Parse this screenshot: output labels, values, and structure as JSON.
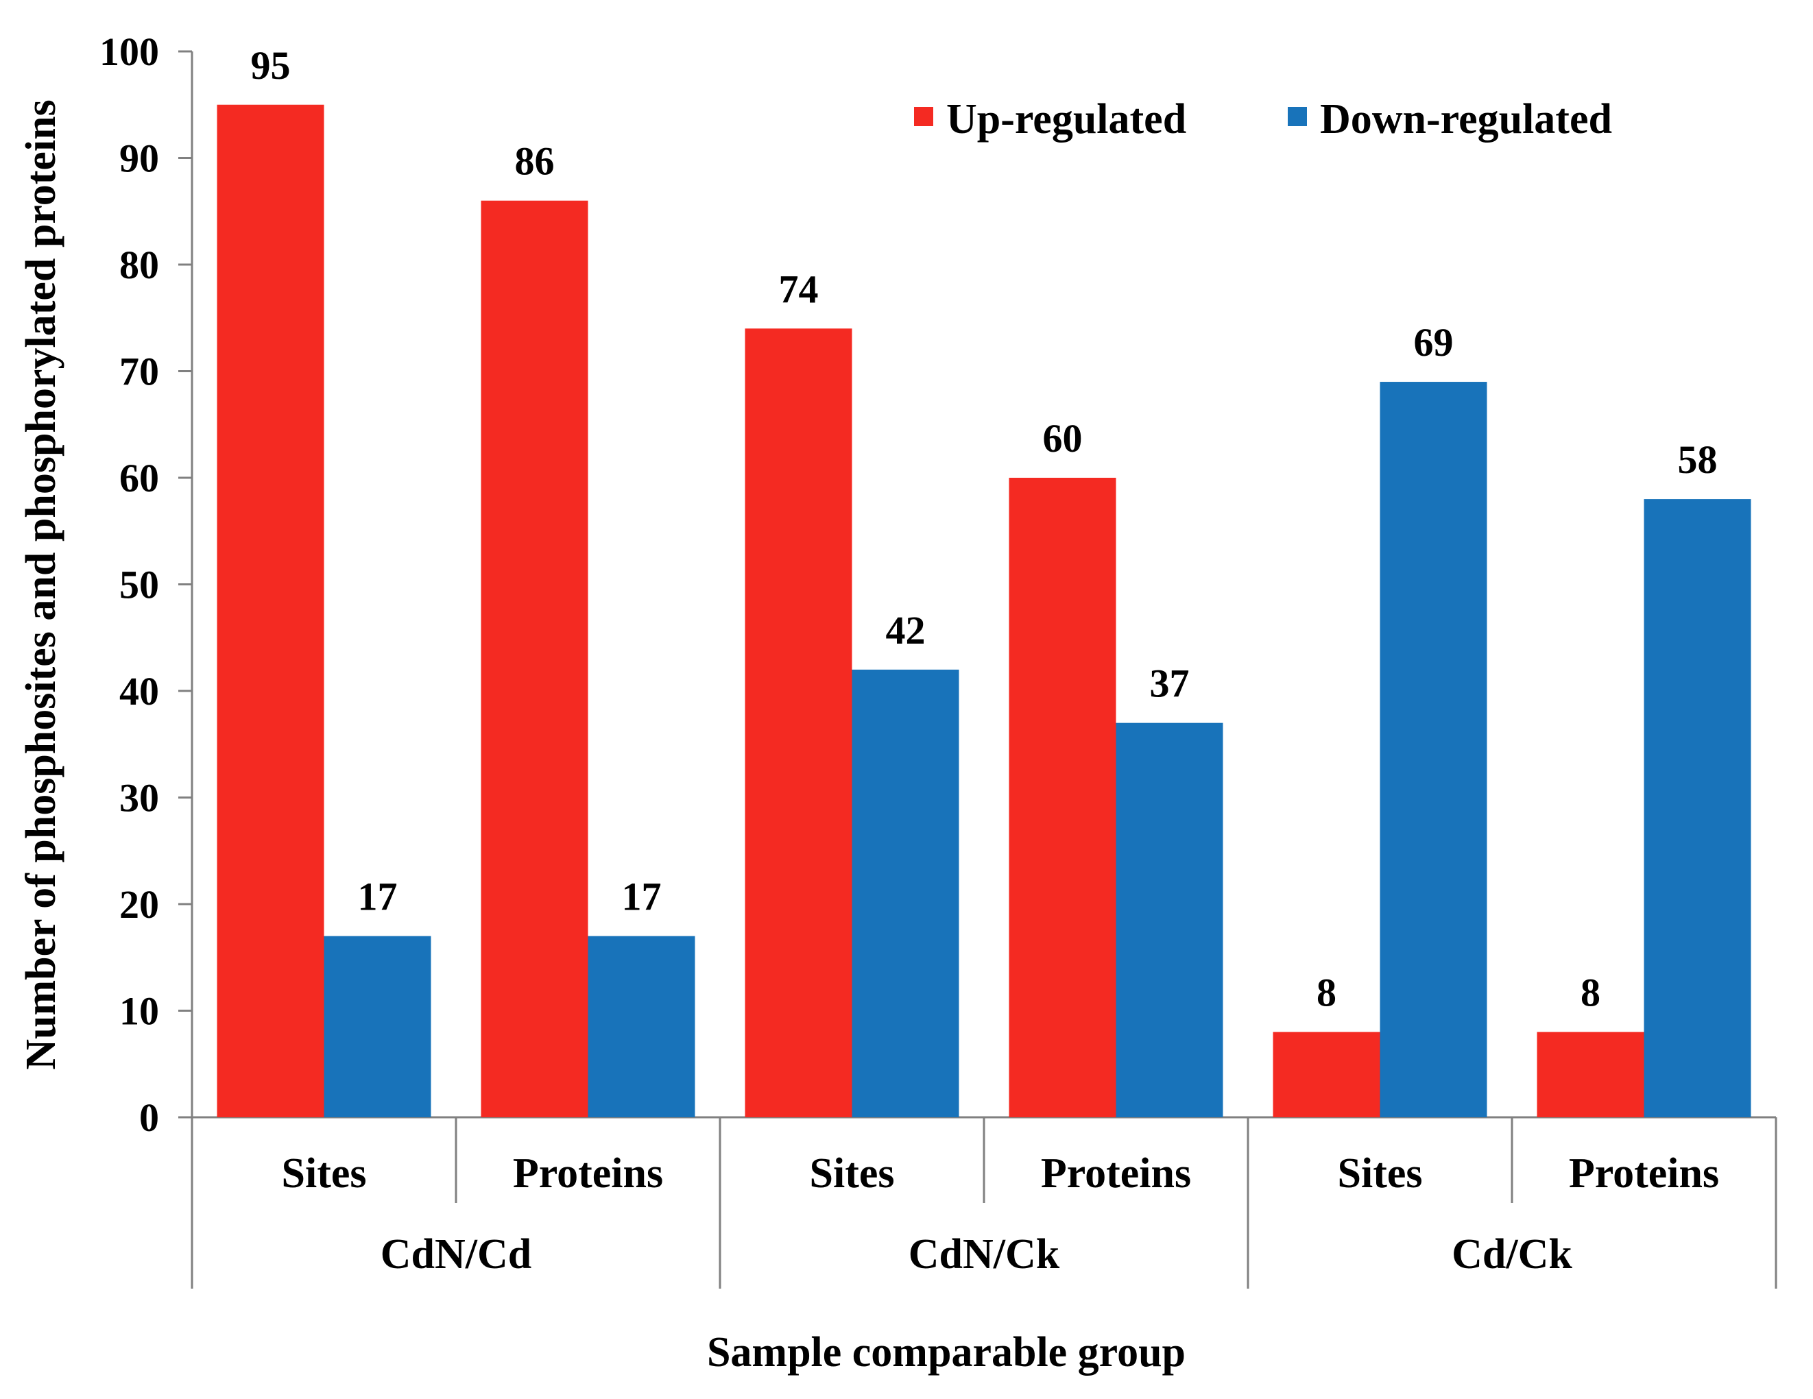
{
  "chart_data": {
    "type": "bar",
    "title": "",
    "ylabel": "Number of phosphosites and phosphorylated proteins",
    "xlabel": "Sample comparable group",
    "ylim": [
      0,
      100
    ],
    "yticks": [
      0,
      10,
      20,
      30,
      40,
      50,
      60,
      70,
      80,
      90,
      100
    ],
    "groups": [
      {
        "name": "CdN/Cd",
        "subcategories": [
          "Sites",
          "Proteins"
        ]
      },
      {
        "name": "CdN/Ck",
        "subcategories": [
          "Sites",
          "Proteins"
        ]
      },
      {
        "name": "Cd/Ck",
        "subcategories": [
          "Sites",
          "Proteins"
        ]
      }
    ],
    "categories": [
      "Sites",
      "Proteins",
      "Sites",
      "Proteins",
      "Sites",
      "Proteins"
    ],
    "series": [
      {
        "name": "Up-regulated",
        "color": "#F42A22",
        "values": [
          95,
          86,
          74,
          60,
          8,
          8
        ]
      },
      {
        "name": "Down-regulated",
        "color": "#1873BA",
        "values": [
          17,
          17,
          42,
          37,
          69,
          58
        ]
      }
    ],
    "legend_position": "top-right",
    "grid": false
  }
}
